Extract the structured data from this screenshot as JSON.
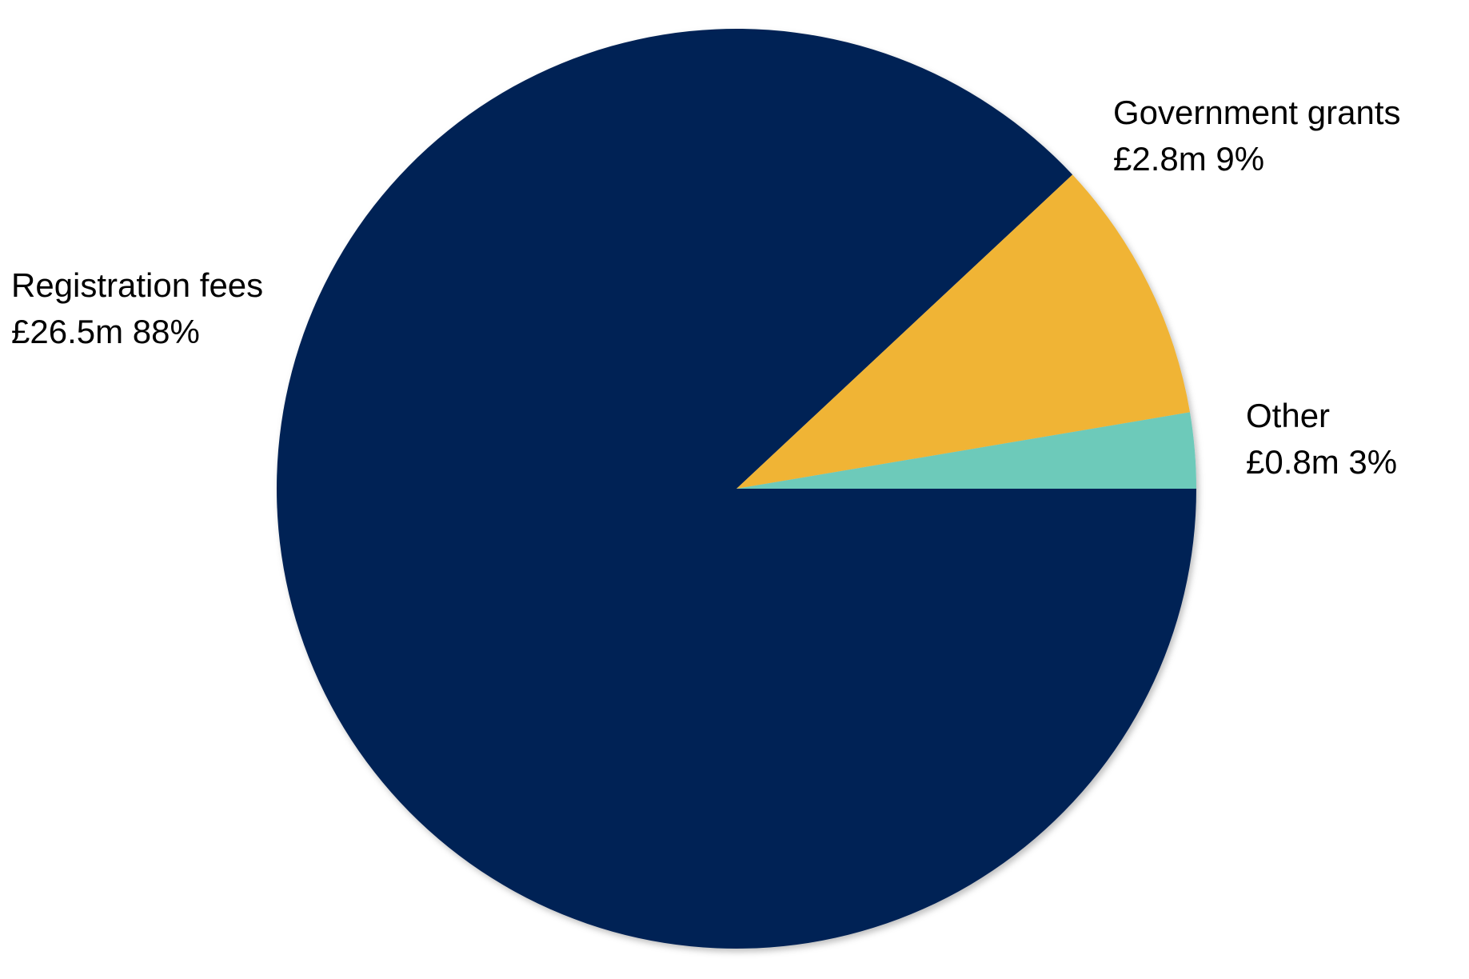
{
  "chart_data": {
    "type": "pie",
    "categories": [
      "Registration fees",
      "Government grants",
      "Other"
    ],
    "values": [
      26.5,
      2.8,
      0.8
    ],
    "value_labels": [
      "£26.5m 88%",
      "£2.8m 9%",
      "£0.8m 3%"
    ],
    "colors": [
      "#022454",
      "#f0b436",
      "#6dcaba"
    ]
  }
}
